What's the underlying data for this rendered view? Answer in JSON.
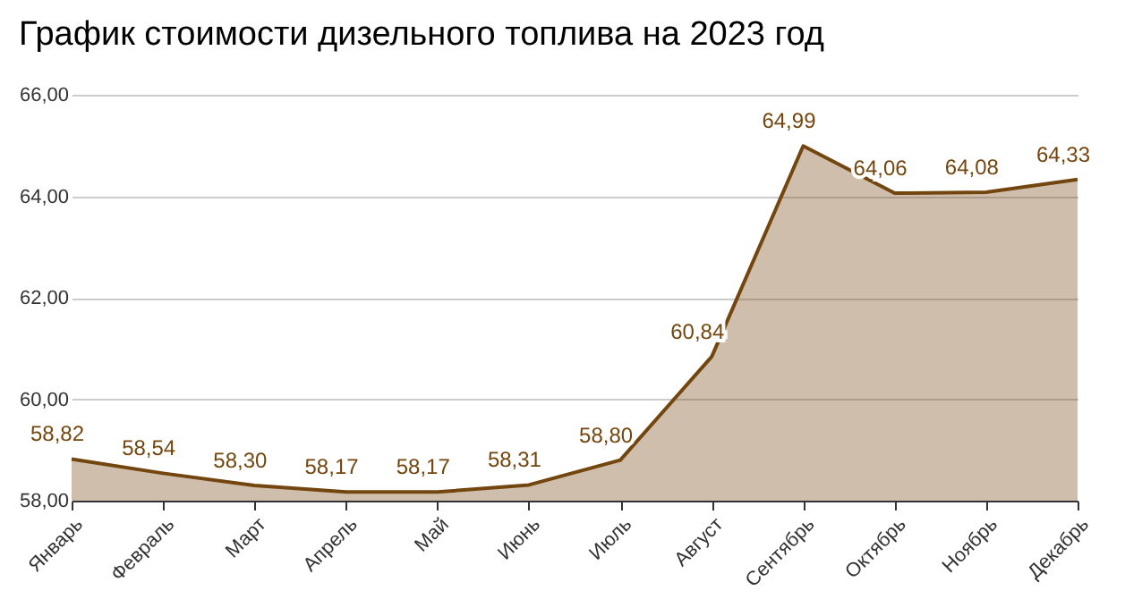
{
  "chart_data": {
    "type": "area",
    "title": "График стоимости дизельного топлива на 2023 год",
    "categories": [
      "Январь",
      "Февраль",
      "Март",
      "Апрель",
      "Май",
      "Июнь",
      "Июль",
      "Август",
      "Сентябрь",
      "Октябрь",
      "Ноябрь",
      "Декабрь"
    ],
    "series": [
      {
        "color": "#74460f",
        "values": [
          58.82,
          58.54,
          58.3,
          58.17,
          58.17,
          58.31,
          58.8,
          60.84,
          64.99,
          64.06,
          64.08,
          64.33
        ],
        "value_labels": [
          "58,82",
          "58,54",
          "58,30",
          "58,17",
          "58,17",
          "58,31",
          "58,80",
          "60,84",
          "64,99",
          "64,06",
          "64,08",
          "64,33"
        ]
      }
    ],
    "ylim": [
      58,
      66
    ],
    "yticks": [
      {
        "value": 58,
        "label": "58,00"
      },
      {
        "value": 60,
        "label": "60,00"
      },
      {
        "value": 62,
        "label": "62,00"
      },
      {
        "value": 64,
        "label": "64,00"
      },
      {
        "value": 66,
        "label": "66,00"
      }
    ],
    "grid": "y"
  }
}
